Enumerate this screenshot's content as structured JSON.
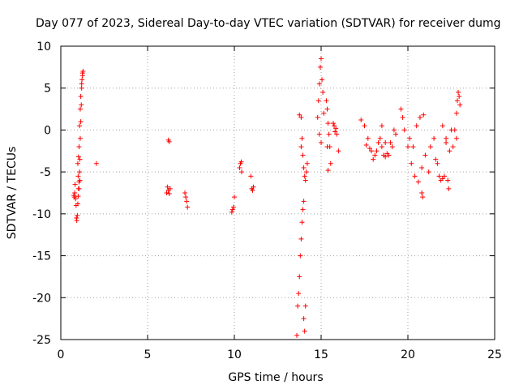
{
  "colors": {
    "series": "#ff0000",
    "grid": "#a0a0a0",
    "axis": "#000000",
    "background": "#ffffff"
  },
  "chart_data": {
    "type": "scatter",
    "title": "Day 077 of 2023, Sidereal Day-to-day VTEC variation (SDTVAR) for receiver dumg",
    "xlabel": "GPS time / hours",
    "ylabel": "SDTVAR / TECUs",
    "xlim": [
      0,
      25
    ],
    "ylim": [
      -25,
      10
    ],
    "xticks": [
      0,
      5,
      10,
      15,
      20,
      25
    ],
    "yticks": [
      -25,
      -20,
      -15,
      -10,
      -5,
      0,
      5,
      10
    ],
    "grid": true,
    "marker": "+",
    "series": [
      {
        "name": "SDTVAR",
        "x": [
          0.75,
          0.78,
          0.8,
          0.82,
          0.85,
          0.88,
          0.9,
          0.92,
          0.95,
          0.98,
          1.0,
          1.02,
          1.05,
          1.08,
          1.1,
          1.12,
          1.15,
          1.18,
          1.2,
          1.22,
          1.25,
          1.28,
          1.02,
          1.05,
          1.08,
          1.12,
          1.15,
          1.2,
          1.25,
          1.0,
          0.98,
          1.05,
          1.1,
          2.05,
          6.1,
          6.15,
          6.2,
          6.25,
          6.3,
          6.2,
          6.25,
          7.15,
          7.2,
          7.25,
          7.3,
          9.85,
          9.9,
          9.95,
          10.0,
          10.3,
          10.35,
          10.4,
          10.42,
          10.95,
          11.0,
          11.05,
          11.1,
          13.6,
          13.65,
          13.7,
          13.75,
          13.8,
          13.85,
          13.9,
          13.95,
          14.0,
          14.0,
          14.05,
          14.1,
          13.9,
          13.85,
          13.95,
          14.0,
          14.05,
          14.1,
          14.15,
          14.2,
          13.75,
          13.85,
          14.8,
          14.85,
          14.9,
          14.95,
          15.0,
          15.05,
          15.1,
          15.15,
          14.9,
          15.0,
          15.3,
          15.35,
          15.4,
          15.45,
          15.5,
          15.55,
          15.4,
          15.35,
          15.7,
          15.75,
          15.8,
          15.85,
          15.9,
          16.0,
          17.3,
          17.5,
          17.7,
          17.9,
          18.1,
          18.3,
          18.5,
          18.7,
          18.9,
          19.1,
          19.3,
          17.6,
          17.8,
          18.0,
          18.2,
          18.4,
          18.6,
          18.8,
          19.0,
          19.2,
          18.5,
          18.7,
          19.6,
          19.7,
          19.8,
          20.0,
          20.2,
          20.4,
          20.6,
          20.8,
          21.0,
          21.2,
          20.1,
          20.3,
          20.5,
          20.7,
          20.9,
          20.8,
          20.85,
          21.3,
          21.5,
          21.7,
          21.9,
          22.1,
          21.6,
          21.8,
          22.0,
          22.2,
          22.0,
          22.2,
          22.4,
          22.5,
          22.6,
          22.3,
          22.35,
          22.8,
          22.85,
          22.9,
          22.95,
          23.0,
          22.7,
          22.8
        ],
        "y": [
          -7.8,
          -8.0,
          -7.5,
          -6.5,
          -8.2,
          -9.0,
          -10.5,
          -10.8,
          -10.2,
          -8.8,
          -7.9,
          -7.0,
          -6.2,
          -5.0,
          -3.5,
          -1.0,
          1.0,
          3.0,
          5.0,
          6.0,
          6.5,
          7.0,
          -3.2,
          -2.0,
          0.5,
          2.5,
          4.0,
          5.5,
          6.8,
          -5.5,
          -4.0,
          -7.0,
          -6.0,
          -4.0,
          -7.5,
          -6.8,
          -7.2,
          -7.6,
          -7.0,
          -1.2,
          -1.4,
          -7.5,
          -8.0,
          -8.5,
          -9.2,
          -9.8,
          -9.5,
          -9.2,
          -8.0,
          -4.5,
          -4.0,
          -3.8,
          -5.0,
          -5.5,
          -7.0,
          -7.2,
          -6.8,
          -24.5,
          -21.0,
          -19.5,
          -17.5,
          -15.0,
          -13.0,
          -11.0,
          -9.5,
          -8.5,
          -22.5,
          -24.0,
          -21.0,
          -1.0,
          -2.0,
          -3.0,
          -4.5,
          -5.5,
          -6.0,
          -5.0,
          -4.0,
          1.8,
          1.5,
          1.5,
          3.5,
          5.5,
          7.5,
          8.5,
          6.0,
          4.5,
          2.0,
          -0.5,
          -1.5,
          3.5,
          2.5,
          0.8,
          -0.5,
          -2.0,
          -4.0,
          -4.8,
          -2.0,
          0.8,
          0.5,
          -0.2,
          0.2,
          -0.5,
          -2.5,
          1.2,
          0.5,
          -1.0,
          -2.5,
          -3.0,
          -1.5,
          0.5,
          -1.5,
          -3.0,
          -2.0,
          -0.5,
          -1.8,
          -2.2,
          -3.5,
          -2.5,
          -1.0,
          -3.0,
          -2.8,
          -1.5,
          0.0,
          -2.0,
          -3.2,
          2.5,
          1.5,
          0.0,
          -2.0,
          -4.0,
          -5.5,
          -6.2,
          -4.5,
          -3.0,
          -5.0,
          -1.0,
          -2.0,
          0.5,
          1.5,
          1.8,
          -7.5,
          -8.0,
          -2.0,
          -1.0,
          -4.0,
          -6.0,
          -5.5,
          -3.5,
          -5.5,
          -5.8,
          -1.0,
          0.5,
          -1.5,
          -2.5,
          0.0,
          -2.0,
          -6.0,
          -7.0,
          2.0,
          3.5,
          4.5,
          4.0,
          3.0,
          0.0,
          -1.0
        ]
      }
    ]
  }
}
